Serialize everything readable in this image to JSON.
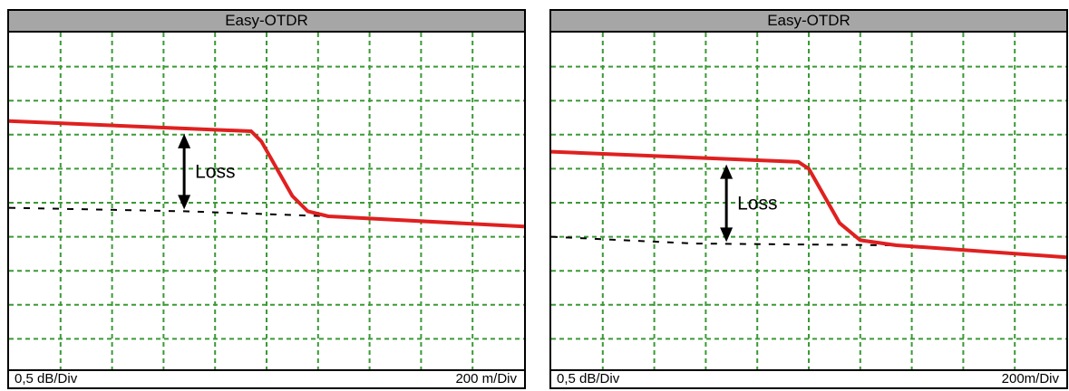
{
  "colors": {
    "grid": "#3a9a35",
    "trace": "#e02020",
    "reference": "#000000",
    "titlebar": "#a6a6a6"
  },
  "chart_data": [
    {
      "type": "line",
      "title": "Easy-OTDR",
      "y_scale_label": "0,5 dB/Div",
      "x_scale_label": "200 m/Div",
      "grid": true,
      "grid_divisions": {
        "x": 10,
        "y": 10
      },
      "annotation": "Loss",
      "series": [
        {
          "values": [
            [
              0.0,
              7.4
            ],
            [
              4.7,
              7.1
            ],
            [
              4.9,
              6.8
            ],
            [
              5.5,
              5.2
            ],
            [
              5.8,
              4.75
            ],
            [
              6.2,
              4.6
            ],
            [
              10.0,
              4.3
            ]
          ]
        },
        {
          "values": [
            [
              0.0,
              4.85
            ],
            [
              3.4,
              4.75
            ],
            [
              6.2,
              4.6
            ],
            [
              10.0,
              4.3
            ]
          ]
        }
      ]
    },
    {
      "type": "line",
      "title": "Easy-OTDR",
      "y_scale_label": "0,5 dB/Div",
      "x_scale_label": "200m/Div",
      "grid": true,
      "grid_divisions": {
        "x": 10,
        "y": 10
      },
      "annotation": "Loss",
      "series": [
        {
          "values": [
            [
              0.0,
              6.5
            ],
            [
              4.8,
              6.2
            ],
            [
              5.0,
              6.0
            ],
            [
              5.6,
              4.4
            ],
            [
              6.0,
              3.9
            ],
            [
              6.7,
              3.75
            ],
            [
              10.0,
              3.4
            ]
          ]
        },
        {
          "values": [
            [
              0.0,
              4.0
            ],
            [
              2.8,
              3.8
            ],
            [
              6.7,
              3.75
            ],
            [
              10.0,
              3.4
            ]
          ]
        }
      ]
    }
  ]
}
